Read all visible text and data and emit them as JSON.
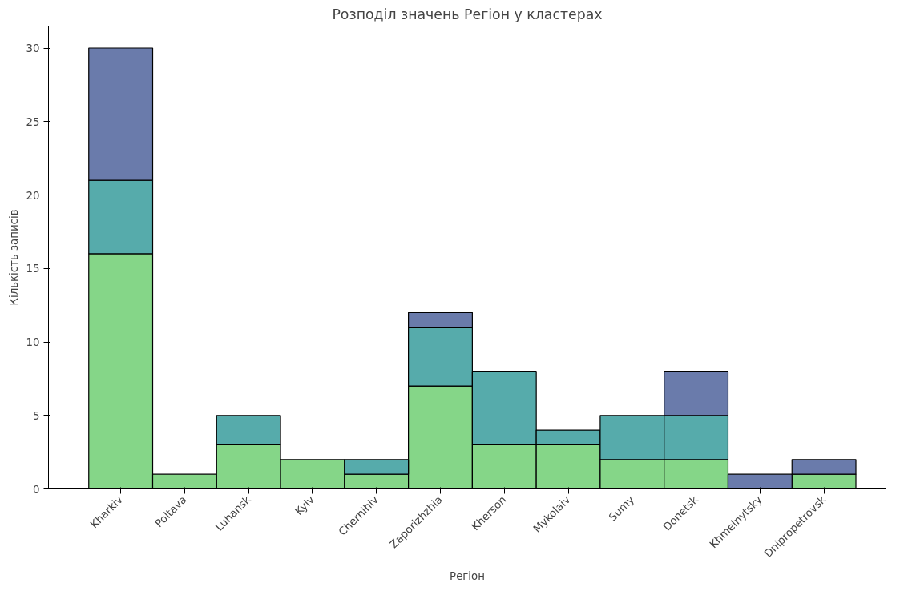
{
  "chart_data": {
    "type": "bar",
    "stacked": true,
    "title": "Розподіл значень Регіон у кластерах",
    "xlabel": "Регіон",
    "ylabel": "Кількість записів",
    "categories": [
      "Kharkiv",
      "Poltava",
      "Luhansk",
      "Kyiv",
      "Chernihiv",
      "Zaporizhzhia",
      "Kherson",
      "Mykolaiv",
      "Sumy",
      "Donetsk",
      "Khmelnytsky",
      "Dnipropetrovsk"
    ],
    "series": [
      {
        "color": "#85d688",
        "values": [
          16,
          1,
          3,
          2,
          1,
          7,
          3,
          3,
          2,
          2,
          0,
          1
        ]
      },
      {
        "color": "#56abab",
        "values": [
          5,
          0,
          2,
          0,
          1,
          4,
          5,
          1,
          3,
          3,
          0,
          0
        ]
      },
      {
        "color": "#6a7bab",
        "values": [
          9,
          0,
          0,
          0,
          0,
          1,
          0,
          0,
          0,
          3,
          1,
          1
        ]
      }
    ],
    "ylim": [
      0,
      31.5
    ],
    "yticks": [
      0,
      5,
      10,
      15,
      20,
      25,
      30
    ],
    "grid": false
  }
}
